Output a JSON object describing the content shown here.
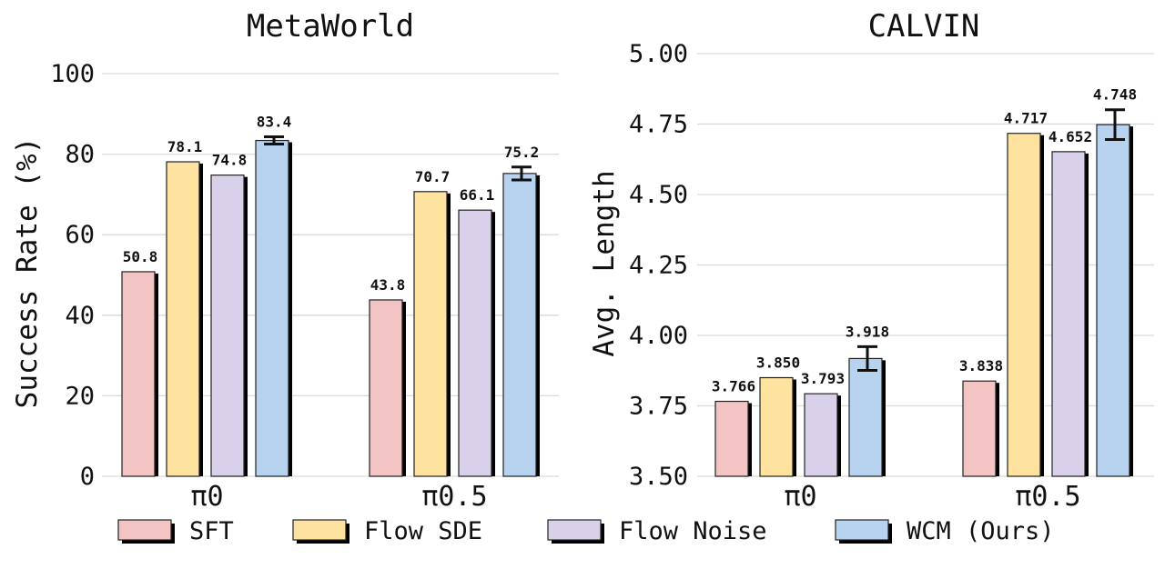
{
  "legend": {
    "items": [
      {
        "name": "SFT",
        "color": "#f2c4c3"
      },
      {
        "name": "Flow SDE",
        "color": "#fde2a0"
      },
      {
        "name": "Flow Noise",
        "color": "#d9d1ea"
      },
      {
        "name": "WCM (Ours)",
        "color": "#b7d3f0"
      }
    ]
  },
  "chart_data": [
    {
      "type": "bar",
      "title": "MetaWorld",
      "ylabel": "Success Rate (%)",
      "xlabel": "",
      "categories": [
        "π0",
        "π0.5"
      ],
      "ylim": [
        0,
        100
      ],
      "yticks": [
        "0",
        "20",
        "40",
        "60",
        "80",
        "100"
      ],
      "grid": true,
      "series": [
        {
          "name": "SFT",
          "values": [
            50.8,
            43.8
          ],
          "labels": [
            "50.8",
            "43.8"
          ]
        },
        {
          "name": "Flow SDE",
          "values": [
            78.1,
            70.7
          ],
          "labels": [
            "78.1",
            "70.7"
          ]
        },
        {
          "name": "Flow Noise",
          "values": [
            74.8,
            66.1
          ],
          "labels": [
            "74.8",
            "66.1"
          ]
        },
        {
          "name": "WCM (Ours)",
          "values": [
            83.4,
            75.2
          ],
          "labels": [
            "83.4",
            "75.2"
          ],
          "error": [
            0.9,
            1.6
          ]
        }
      ]
    },
    {
      "type": "bar",
      "title": "CALVIN",
      "ylabel": "Avg. Length",
      "xlabel": "",
      "categories": [
        "π0",
        "π0.5"
      ],
      "ylim": [
        3.5,
        5.0
      ],
      "yticks": [
        "3.50",
        "3.75",
        "4.00",
        "4.25",
        "4.50",
        "4.75",
        "5.00"
      ],
      "grid": true,
      "series": [
        {
          "name": "SFT",
          "values": [
            3.766,
            3.838
          ],
          "labels": [
            "3.766",
            "3.838"
          ]
        },
        {
          "name": "Flow SDE",
          "values": [
            3.85,
            4.717
          ],
          "labels": [
            "3.850",
            "4.717"
          ]
        },
        {
          "name": "Flow Noise",
          "values": [
            3.793,
            4.652
          ],
          "labels": [
            "3.793",
            "4.652"
          ]
        },
        {
          "name": "WCM (Ours)",
          "values": [
            3.918,
            4.748
          ],
          "labels": [
            "3.918",
            "4.748"
          ],
          "error": [
            0.042,
            0.053
          ]
        }
      ]
    }
  ]
}
